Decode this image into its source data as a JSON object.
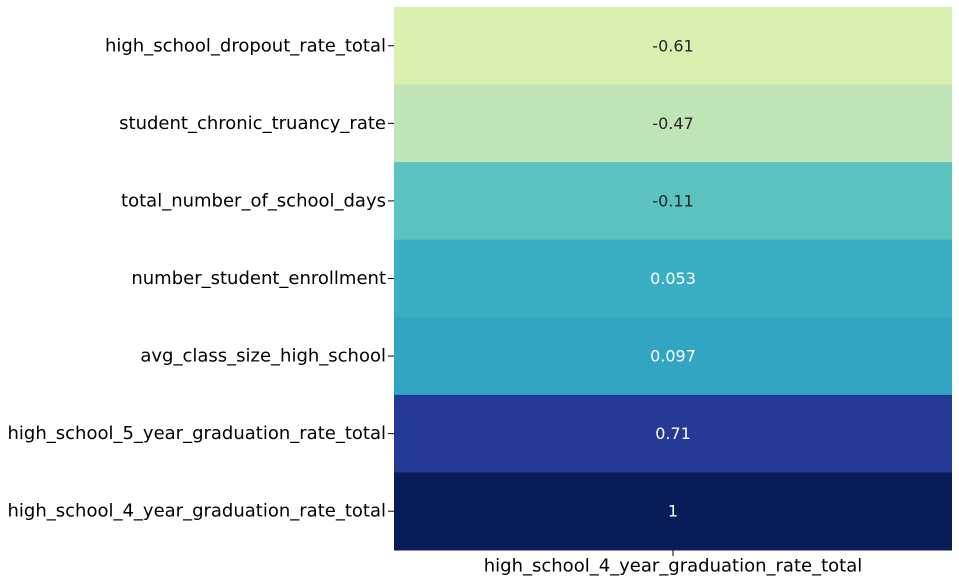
{
  "chart_data": {
    "type": "heatmap",
    "rows": [
      "high_school_dropout_rate_total",
      "student_chronic_truancy_rate",
      "total_number_of_school_days",
      "number_student_enrollment",
      "avg_class_size_high_school",
      "high_school_5_year_graduation_rate_total",
      "high_school_4_year_graduation_rate_total"
    ],
    "columns": [
      "high_school_4_year_graduation_rate_total"
    ],
    "values": [
      -0.61,
      -0.47,
      -0.11,
      0.053,
      0.097,
      0.71,
      1
    ],
    "labels": [
      "-0.61",
      "-0.47",
      "-0.11",
      "0.053",
      "0.097",
      "0.71",
      "1"
    ],
    "colormap": "YlGnBu",
    "colors": [
      "#d9f0b1",
      "#bfe4b5",
      "#5bc2c0",
      "#3aafc3",
      "#31a5c2",
      "#253a97",
      "#081d58"
    ],
    "text_colors": [
      "#262626",
      "#262626",
      "#262626",
      "#ffffff",
      "#ffffff",
      "#ffffff",
      "#ffffff"
    ],
    "colorbar": false
  }
}
